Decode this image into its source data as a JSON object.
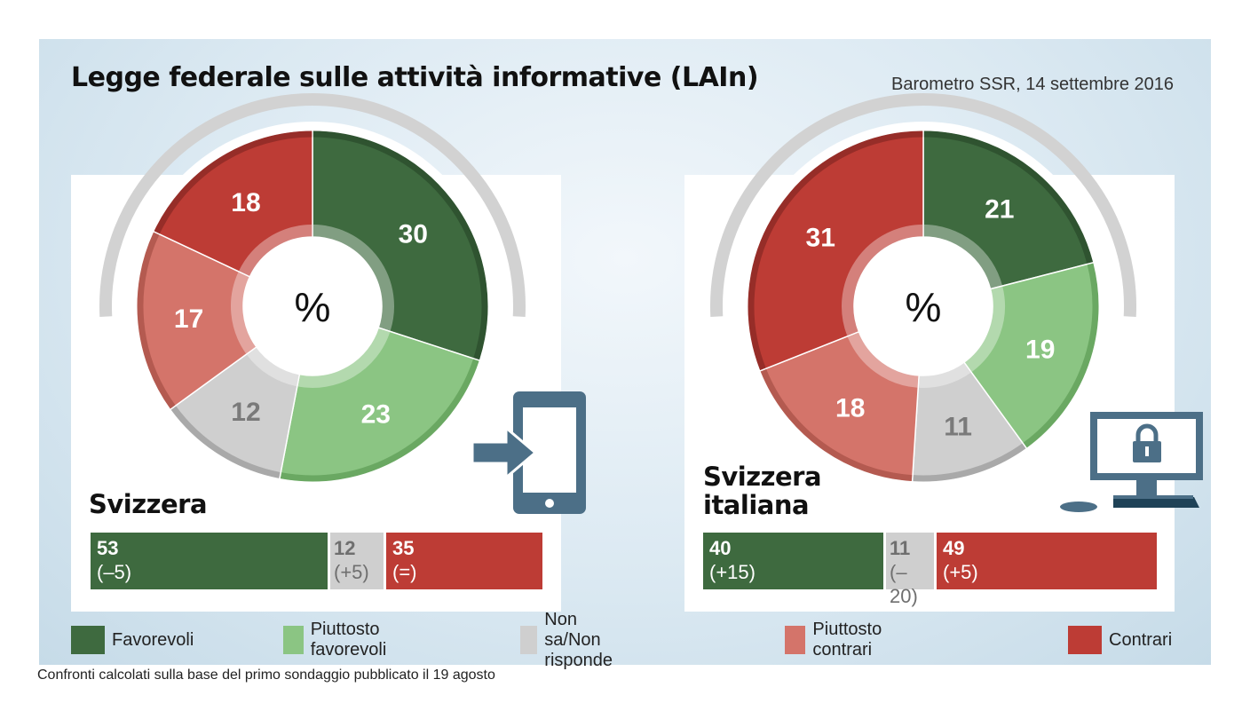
{
  "header": {
    "title": "Legge federale sulle attività informative (LAIn)",
    "source": "Barometro SSR, 14 settembre 2016"
  },
  "colors": {
    "favorevoli": "#3e6a3f",
    "piuttosto_favorevoli": "#8bc583",
    "non_sa": "#cfcfcf",
    "piuttosto_contrari": "#d4746a",
    "contrari": "#bd3c35",
    "icon": "#4c6f87"
  },
  "center_symbol": "%",
  "icons": [
    "tablet-login-icon",
    "computer-lock-icon"
  ],
  "regions": [
    {
      "name": "Svizzera",
      "summary": [
        {
          "value": "53",
          "change": "(–5)",
          "color": "favorevoli"
        },
        {
          "value": "12",
          "change": "(+5)",
          "color": "non_sa"
        },
        {
          "value": "35",
          "change": "(=)",
          "color": "contrari"
        }
      ]
    },
    {
      "name_line1": "Svizzera",
      "name_line2": "italiana",
      "summary": [
        {
          "value": "40",
          "change": "(+15)",
          "color": "favorevoli"
        },
        {
          "value": "11",
          "change": "(–20)",
          "color": "non_sa"
        },
        {
          "value": "49",
          "change": "(+5)",
          "color": "contrari"
        }
      ]
    }
  ],
  "legend": [
    {
      "label": "Favorevoli",
      "color": "favorevoli"
    },
    {
      "label": "Piuttosto favorevoli",
      "color": "piuttosto_favorevoli"
    },
    {
      "label": "Non sa/Non risponde",
      "color": "non_sa"
    },
    {
      "label": "Piuttosto contrari",
      "color": "piuttosto_contrari"
    },
    {
      "label": "Contrari",
      "color": "contrari"
    }
  ],
  "footnote": "Confronti calcolati sulla base del primo sondaggio pubblicato il 19 agosto",
  "chart_data": [
    {
      "type": "pie",
      "title": "Svizzera",
      "categories": [
        "Favorevoli",
        "Piuttosto favorevoli",
        "Non sa/Non risponde",
        "Piuttosto contrari",
        "Contrari"
      ],
      "values": [
        30,
        23,
        12,
        17,
        18
      ],
      "summary_bar": {
        "categories": [
          "Favorevoli",
          "Non sa/Non risponde",
          "Contrari"
        ],
        "values": [
          53,
          12,
          35
        ],
        "changes": [
          "(–5)",
          "(+5)",
          "(=)"
        ]
      }
    },
    {
      "type": "pie",
      "title": "Svizzera italiana",
      "categories": [
        "Favorevoli",
        "Piuttosto favorevoli",
        "Non sa/Non risponde",
        "Piuttosto contrari",
        "Contrari"
      ],
      "values": [
        21,
        19,
        11,
        18,
        31
      ],
      "summary_bar": {
        "categories": [
          "Favorevoli",
          "Non sa/Non risponde",
          "Contrari"
        ],
        "values": [
          40,
          11,
          49
        ],
        "changes": [
          "(+15)",
          "(–20)",
          "(+5)"
        ]
      }
    }
  ]
}
